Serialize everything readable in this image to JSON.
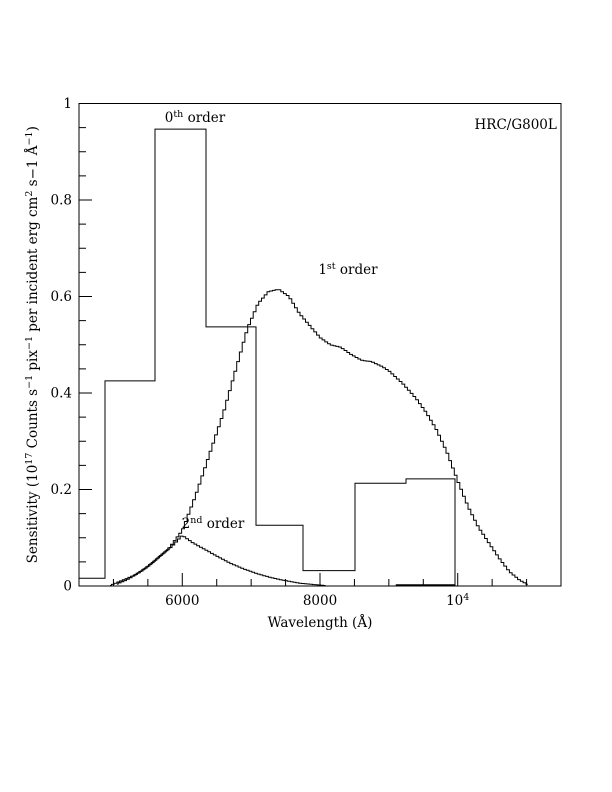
{
  "page": {
    "background": "#ffffff",
    "line_color": "#000000"
  },
  "chart_data": {
    "type": "line",
    "title": "",
    "corner_label": "HRC/G800L",
    "xlabel": "Wavelength (Å)",
    "ylabel_parts": [
      {
        "t": "Sensitivity (10"
      },
      {
        "t": "17",
        "sup": true
      },
      {
        "t": " Counts s"
      },
      {
        "t": "−1",
        "sup": true
      },
      {
        "t": " pix"
      },
      {
        "t": "−1",
        "sup": true
      },
      {
        "t": " per incident erg cm"
      },
      {
        "t": "2",
        "sup": true
      },
      {
        "t": " s−1 Å"
      },
      {
        "t": "−1",
        "sup": true
      },
      {
        "t": ")"
      }
    ],
    "xlim": [
      4500,
      11500
    ],
    "ylim": [
      0,
      1
    ],
    "grid": false,
    "legend": "none (inline annotations)",
    "x_major_ticks": [
      {
        "value": 6000,
        "label_pre": "6000",
        "label_sup": ""
      },
      {
        "value": 8000,
        "label_pre": "8000",
        "label_sup": ""
      },
      {
        "value": 10000,
        "label_pre": "10",
        "label_sup": "4"
      }
    ],
    "x_minor_ticks": [
      5000,
      5500,
      6500,
      7000,
      7500,
      8500,
      9000,
      9500,
      10500,
      11000
    ],
    "y_major_ticks": [
      {
        "value": 0,
        "label": "0"
      },
      {
        "value": 0.2,
        "label": "0.2"
      },
      {
        "value": 0.4,
        "label": "0.4"
      },
      {
        "value": 0.6,
        "label": "0.6"
      },
      {
        "value": 0.8,
        "label": "0.8"
      },
      {
        "value": 1,
        "label": "1"
      }
    ],
    "y_minor_ticks": [
      0.05,
      0.1,
      0.15,
      0.25,
      0.3,
      0.35,
      0.45,
      0.5,
      0.55,
      0.65,
      0.7,
      0.75,
      0.85,
      0.9,
      0.95
    ],
    "series": [
      {
        "name": "0th order",
        "style": "histogram",
        "points": [
          [
            4500,
            0.016
          ],
          [
            4878,
            0.016
          ],
          [
            4878,
            0.425
          ],
          [
            5604,
            0.425
          ],
          [
            5604,
            0.947
          ],
          [
            6344,
            0.947
          ],
          [
            6344,
            0.537
          ],
          [
            7070,
            0.537
          ],
          [
            7070,
            0.126
          ],
          [
            7753,
            0.126
          ],
          [
            7753,
            0.032
          ],
          [
            8508,
            0.032
          ],
          [
            8508,
            0.213
          ],
          [
            9249,
            0.213
          ],
          [
            9249,
            0.222
          ],
          [
            9960,
            0.222
          ],
          [
            9960,
            0.0
          ]
        ]
      },
      {
        "name": "1st order",
        "style": "step-curve",
        "step_width": 40,
        "points": [
          [
            5050,
            0.004
          ],
          [
            5200,
            0.013
          ],
          [
            5400,
            0.03
          ],
          [
            5600,
            0.052
          ],
          [
            5800,
            0.077
          ],
          [
            6000,
            0.115
          ],
          [
            6200,
            0.19
          ],
          [
            6400,
            0.275
          ],
          [
            6600,
            0.36
          ],
          [
            6800,
            0.46
          ],
          [
            6950,
            0.535
          ],
          [
            7100,
            0.585
          ],
          [
            7250,
            0.61
          ],
          [
            7400,
            0.615
          ],
          [
            7550,
            0.6
          ],
          [
            7700,
            0.565
          ],
          [
            7850,
            0.54
          ],
          [
            8000,
            0.515
          ],
          [
            8150,
            0.5
          ],
          [
            8300,
            0.495
          ],
          [
            8450,
            0.48
          ],
          [
            8600,
            0.468
          ],
          [
            8750,
            0.465
          ],
          [
            8900,
            0.455
          ],
          [
            9000,
            0.446
          ],
          [
            9200,
            0.42
          ],
          [
            9400,
            0.388
          ],
          [
            9550,
            0.358
          ],
          [
            9700,
            0.322
          ],
          [
            9850,
            0.275
          ],
          [
            10000,
            0.218
          ],
          [
            10150,
            0.165
          ],
          [
            10300,
            0.122
          ],
          [
            10450,
            0.09
          ],
          [
            10600,
            0.058
          ],
          [
            10750,
            0.03
          ],
          [
            10900,
            0.012
          ],
          [
            11020,
            0.003
          ]
        ]
      },
      {
        "name": "2nd order",
        "style": "step-curve",
        "step_width": 40,
        "points": [
          [
            4950,
            0.001
          ],
          [
            5100,
            0.01
          ],
          [
            5300,
            0.022
          ],
          [
            5500,
            0.04
          ],
          [
            5700,
            0.065
          ],
          [
            5850,
            0.082
          ],
          [
            6000,
            0.105
          ],
          [
            6150,
            0.09
          ],
          [
            6300,
            0.078
          ],
          [
            6500,
            0.062
          ],
          [
            6700,
            0.047
          ],
          [
            6900,
            0.035
          ],
          [
            7100,
            0.025
          ],
          [
            7300,
            0.017
          ],
          [
            7500,
            0.011
          ],
          [
            7700,
            0.006
          ],
          [
            7900,
            0.003
          ],
          [
            8080,
            0.001
          ]
        ],
        "zero_tail": [
          [
            9100,
            0.0015
          ],
          [
            9960,
            0.0015
          ]
        ]
      }
    ],
    "annotations": [
      {
        "id": "zeroth-order-label",
        "pre": "0",
        "sup": "th",
        "post": " order",
        "x": 6185,
        "y": 0.962,
        "anchor": "middle"
      },
      {
        "id": "first-order-label",
        "pre": "1",
        "sup": "st",
        "post": " order",
        "x": 8406,
        "y": 0.647,
        "anchor": "middle"
      },
      {
        "id": "second-order-label",
        "pre": "2",
        "sup": "nd",
        "post": " order",
        "x": 6446,
        "y": 0.12,
        "anchor": "middle"
      },
      {
        "id": "instrument-label",
        "pre": "HRC/G800L",
        "sup": "",
        "post": "",
        "x": 11440,
        "y": 0.947,
        "anchor": "end"
      }
    ]
  }
}
